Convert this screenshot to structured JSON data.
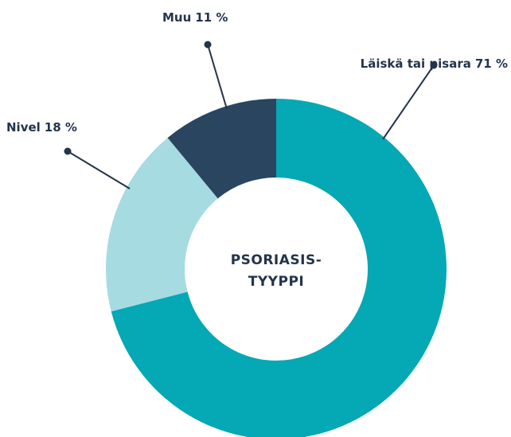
{
  "chart_data": {
    "type": "donut",
    "center_label": [
      "PSORIASIS-",
      "TYYPPI"
    ],
    "categories": [
      "Läiskä tai pisara",
      "Nivel",
      "Muu"
    ],
    "values": [
      71,
      18,
      11
    ],
    "value_labels": [
      "71 %",
      "18 %",
      "11 %"
    ],
    "colors": [
      "#05a8b5",
      "#a6dbe1",
      "#2a4560"
    ]
  }
}
